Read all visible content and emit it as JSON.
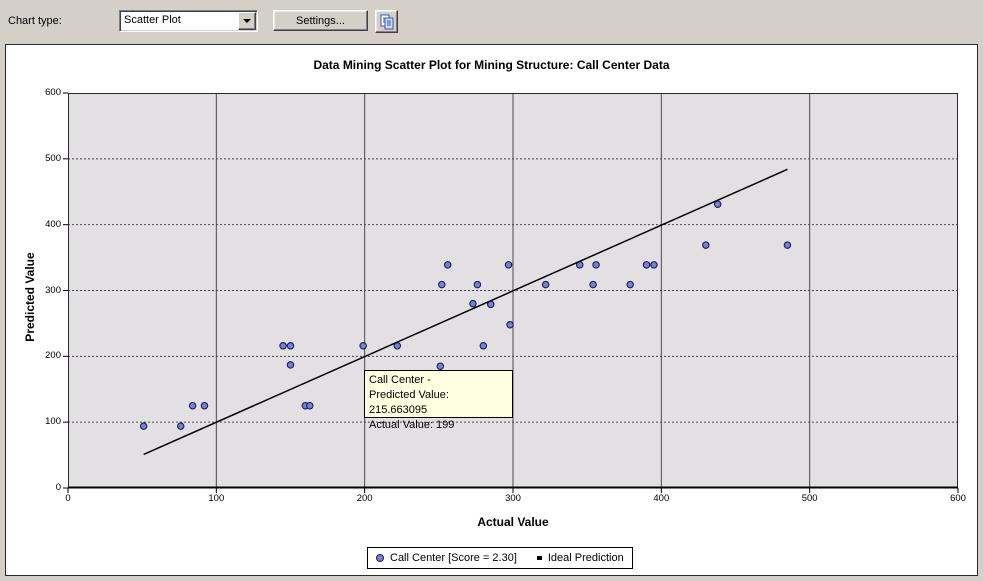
{
  "toolbar": {
    "chart_type_label": "Chart type:",
    "chart_type_value": "Scatter Plot",
    "settings_button": "Settings...",
    "copy_icon": "copy-icon"
  },
  "chart": {
    "title": "Data Mining Scatter Plot for Mining Structure: Call Center Data",
    "tooltip": {
      "line1": "Call Center -",
      "line2": "Predicted Value: 215.663095",
      "line3": "Actual Value: 199"
    },
    "legend": [
      {
        "marker": "circle",
        "label": "Call Center [Score = 2.30]"
      },
      {
        "marker": "square",
        "label": "Ideal Prediction"
      }
    ]
  },
  "chart_data": {
    "type": "scatter",
    "title": "Data Mining Scatter Plot for Mining Structure: Call Center Data",
    "xlabel": "Actual Value",
    "ylabel": "Predicted Value",
    "xlim": [
      0,
      600
    ],
    "ylim": [
      0,
      600
    ],
    "xticks": [
      0,
      100,
      200,
      300,
      400,
      500,
      600
    ],
    "yticks": [
      0,
      100,
      200,
      300,
      400,
      500,
      600
    ],
    "grid": "vertical-solid-horizontal-dashed",
    "legend_position": "bottom-center",
    "series": [
      {
        "name": "Call Center [Score = 2.30]",
        "type": "scatter",
        "points": [
          [
            51,
            94
          ],
          [
            76,
            94
          ],
          [
            84,
            125
          ],
          [
            92,
            125
          ],
          [
            145,
            216
          ],
          [
            150,
            216
          ],
          [
            150,
            187
          ],
          [
            160,
            125
          ],
          [
            163,
            125
          ],
          [
            199,
            216
          ],
          [
            222,
            216
          ],
          [
            251,
            185
          ],
          [
            252,
            309
          ],
          [
            256,
            339
          ],
          [
            273,
            280
          ],
          [
            276,
            309
          ],
          [
            280,
            216
          ],
          [
            285,
            279
          ],
          [
            297,
            339
          ],
          [
            298,
            248
          ],
          [
            322,
            309
          ],
          [
            345,
            339
          ],
          [
            354,
            309
          ],
          [
            356,
            339
          ],
          [
            379,
            309
          ],
          [
            390,
            339
          ],
          [
            395,
            339
          ],
          [
            430,
            369
          ],
          [
            438,
            431
          ],
          [
            485,
            369
          ]
        ]
      },
      {
        "name": "Ideal Prediction",
        "type": "line",
        "points": [
          [
            51,
            51
          ],
          [
            485,
            484
          ]
        ]
      }
    ],
    "colors": {
      "plot_bg": "#E3E0E4",
      "grid": "#4A4A4A",
      "point_fill": "#7B7FD0",
      "point_stroke": "#1A1A5E",
      "line": "#000000",
      "tooltip_bg": "#FFFFE1",
      "toolbar_bg": "#D4D0C8"
    }
  }
}
